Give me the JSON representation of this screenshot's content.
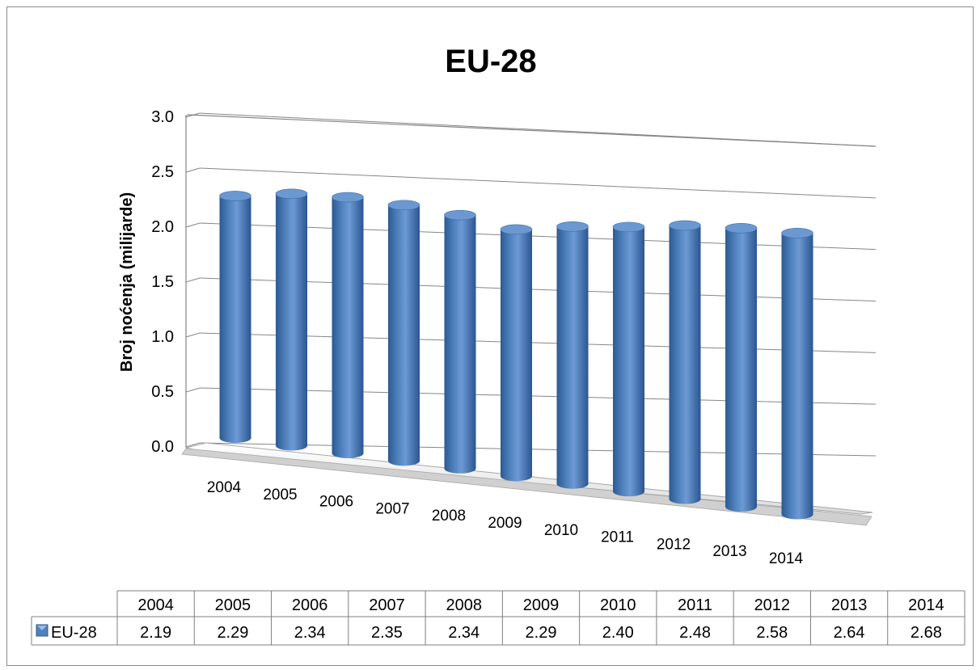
{
  "chart_data": {
    "type": "bar",
    "title": "EU-28",
    "ylabel": "Broj noćenja (milijarde)",
    "xlabel": "",
    "ylim": [
      0,
      3.0
    ],
    "yticks": [
      "0.0",
      "0.5",
      "1.0",
      "1.5",
      "2.0",
      "2.5",
      "3.0"
    ],
    "categories": [
      "2004",
      "2005",
      "2006",
      "2007",
      "2008",
      "2009",
      "2010",
      "2011",
      "2012",
      "2013",
      "2014"
    ],
    "series": [
      {
        "name": "EU-28",
        "values": [
          2.19,
          2.29,
          2.34,
          2.35,
          2.34,
          2.29,
          2.4,
          2.48,
          2.58,
          2.64,
          2.68
        ],
        "labels": [
          "2.19",
          "2.29",
          "2.34",
          "2.35",
          "2.34",
          "2.29",
          "2.40",
          "2.48",
          "2.58",
          "2.64",
          "2.68"
        ]
      }
    ],
    "grid": true,
    "legend": "data-table",
    "colors": {
      "bar": "#4f81bd",
      "bar_dark": "#2c5a91",
      "bar_top": "#6b98d0",
      "grid": "#868686",
      "floor": "#f2f2f2"
    }
  }
}
